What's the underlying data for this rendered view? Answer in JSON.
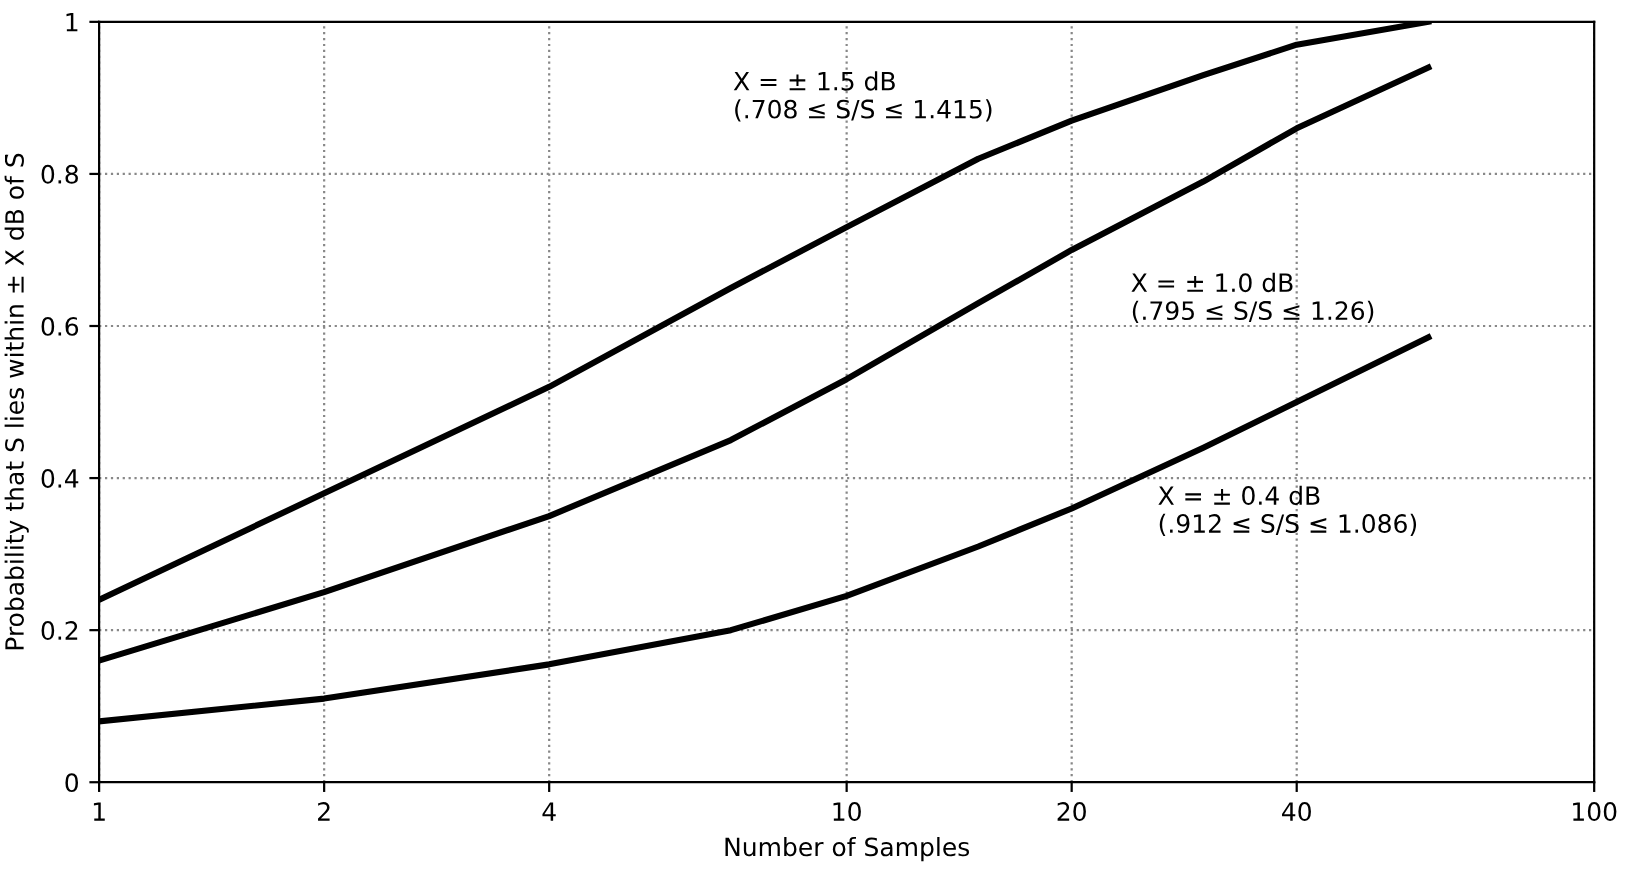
{
  "chart_data": {
    "type": "line",
    "xlabel": "Number of Samples",
    "ylabel": "Probability that S lies within ± X dB of S̄",
    "log": "x",
    "xlim": [
      1,
      100
    ],
    "xticks": [
      1,
      2,
      4,
      10,
      20,
      40,
      100
    ],
    "ylim": [
      0,
      1
    ],
    "yticks": [
      0,
      0.2,
      0.4,
      0.6,
      0.8,
      1
    ],
    "grid": true,
    "marker": "none",
    "line_style": "solid",
    "series": [
      {
        "color": "#000000",
        "x": [
          1,
          2,
          4,
          7,
          10,
          15,
          20,
          30,
          40,
          60
        ],
        "values": [
          0.24,
          0.38,
          0.52,
          0.65,
          0.73,
          0.82,
          0.87,
          0.93,
          0.97,
          1.0
        ]
      },
      {
        "color": "#000000",
        "x": [
          1,
          2,
          4,
          7,
          10,
          15,
          20,
          30,
          40,
          60
        ],
        "values": [
          0.16,
          0.25,
          0.35,
          0.45,
          0.53,
          0.63,
          0.7,
          0.79,
          0.86,
          0.94
        ]
      },
      {
        "color": "#000000",
        "x": [
          1,
          2,
          4,
          7,
          10,
          15,
          20,
          30,
          40,
          60
        ],
        "values": [
          0.08,
          0.11,
          0.155,
          0.2,
          0.245,
          0.31,
          0.36,
          0.44,
          0.5,
          0.585
        ]
      }
    ],
    "annotations": [
      "X = ± 1.5 dB\n(.708 ≤ S/S̄ ≤ 1.415)",
      "X = ± 1.0 dB\n(.795 ≤ S/S̄ ≤ 1.26)",
      "X = ± 0.4 dB\n(.912 ≤ S/S̄ ≤ 1.086)"
    ]
  }
}
